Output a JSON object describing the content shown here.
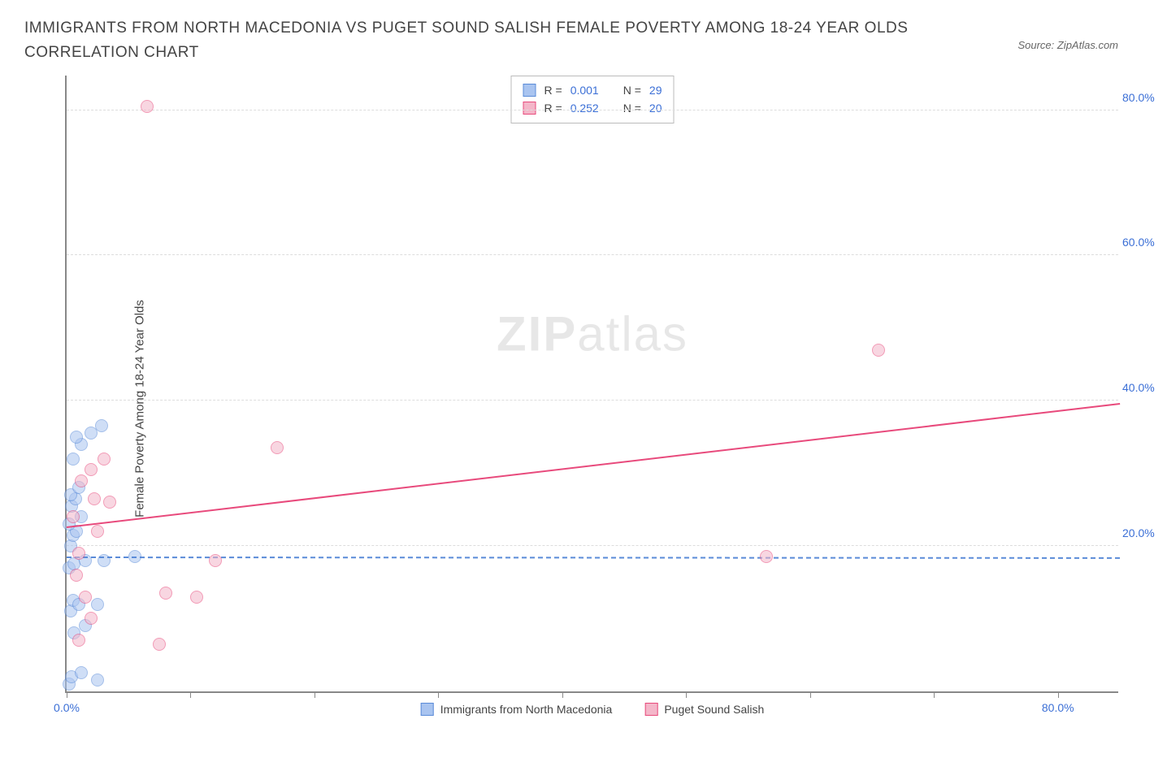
{
  "title": "IMMIGRANTS FROM NORTH MACEDONIA VS PUGET SOUND SALISH FEMALE POVERTY AMONG 18-24 YEAR OLDS CORRELATION CHART",
  "source": "Source: ZipAtlas.com",
  "watermark_bold": "ZIP",
  "watermark_light": "atlas",
  "y_axis_title": "Female Poverty Among 18-24 Year Olds",
  "chart": {
    "type": "scatter",
    "xlim": [
      0,
      85
    ],
    "ylim": [
      0,
      85
    ],
    "background_color": "#ffffff",
    "grid_color": "#dddddd",
    "axis_color": "#888888",
    "tick_label_color": "#3b6fd6",
    "tick_fontsize": 14,
    "y_ticks": [
      20,
      40,
      60,
      80
    ],
    "y_tick_labels": [
      "20.0%",
      "40.0%",
      "60.0%",
      "80.0%"
    ],
    "x_ticks": [
      0,
      10,
      20,
      30,
      40,
      50,
      60,
      70,
      80
    ],
    "x_tick_labels": {
      "0": "0.0%",
      "80": "80.0%"
    },
    "point_radius": 8,
    "point_opacity": 0.55,
    "series": [
      {
        "name": "Immigrants from North Macedonia",
        "color_fill": "#a9c4f0",
        "color_stroke": "#5a8bd8",
        "R": "0.001",
        "N": "29",
        "trend": {
          "y_start": 18.3,
          "y_end": 18.2,
          "style": "dashed",
          "color": "#5a8bd8"
        },
        "points": [
          [
            0.2,
            1
          ],
          [
            0.4,
            2
          ],
          [
            1.2,
            2.5
          ],
          [
            2.5,
            1.5
          ],
          [
            0.6,
            8
          ],
          [
            1.5,
            9
          ],
          [
            0.3,
            11
          ],
          [
            0.5,
            12.5
          ],
          [
            1.0,
            12
          ],
          [
            2.5,
            12
          ],
          [
            0.2,
            17
          ],
          [
            0.6,
            17.5
          ],
          [
            1.5,
            18
          ],
          [
            3.0,
            18
          ],
          [
            5.5,
            18.5
          ],
          [
            0.3,
            20
          ],
          [
            0.5,
            21.5
          ],
          [
            0.8,
            22
          ],
          [
            0.2,
            23
          ],
          [
            1.2,
            24
          ],
          [
            0.4,
            25.5
          ],
          [
            0.7,
            26.5
          ],
          [
            0.3,
            27
          ],
          [
            1.0,
            28
          ],
          [
            0.5,
            32
          ],
          [
            1.2,
            34
          ],
          [
            2.0,
            35.5
          ],
          [
            2.8,
            36.5
          ],
          [
            0.8,
            35
          ]
        ]
      },
      {
        "name": "Puget Sound Salish",
        "color_fill": "#f4b6c9",
        "color_stroke": "#e84a7c",
        "R": "0.252",
        "N": "20",
        "trend": {
          "y_start": 22.5,
          "y_end": 39.5,
          "style": "solid",
          "color": "#e84a7c"
        },
        "points": [
          [
            1.0,
            7
          ],
          [
            7.5,
            6.5
          ],
          [
            2.0,
            10
          ],
          [
            1.5,
            13
          ],
          [
            8.0,
            13.5
          ],
          [
            10.5,
            13
          ],
          [
            12.0,
            18
          ],
          [
            1.0,
            19
          ],
          [
            2.5,
            22
          ],
          [
            0.5,
            24
          ],
          [
            2.2,
            26.5
          ],
          [
            3.5,
            26
          ],
          [
            1.2,
            29
          ],
          [
            2.0,
            30.5
          ],
          [
            3.0,
            32
          ],
          [
            17.0,
            33.5
          ],
          [
            56.5,
            18.5
          ],
          [
            65.5,
            47
          ],
          [
            6.5,
            80.5
          ],
          [
            0.8,
            16
          ]
        ]
      }
    ]
  },
  "legend_top": {
    "rows": [
      {
        "swatch_fill": "#a9c4f0",
        "swatch_stroke": "#5a8bd8",
        "r_label": "R =",
        "r_val": "0.001",
        "n_label": "N =",
        "n_val": "29"
      },
      {
        "swatch_fill": "#f4b6c9",
        "swatch_stroke": "#e84a7c",
        "r_label": "R =",
        "r_val": "0.252",
        "n_label": "N =",
        "n_val": "20"
      }
    ]
  },
  "legend_bottom": [
    {
      "swatch_fill": "#a9c4f0",
      "swatch_stroke": "#5a8bd8",
      "label": "Immigrants from North Macedonia"
    },
    {
      "swatch_fill": "#f4b6c9",
      "swatch_stroke": "#e84a7c",
      "label": "Puget Sound Salish"
    }
  ]
}
